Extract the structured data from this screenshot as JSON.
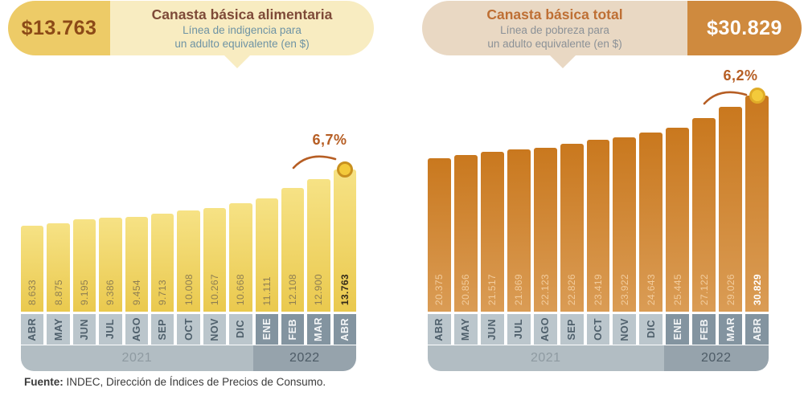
{
  "header_left": {
    "value": "$13.763",
    "title": "Canasta básica alimentaria",
    "subtitle_line1": "Línea de indigencia para",
    "subtitle_line2": "un adulto equivalente (en $)"
  },
  "header_right": {
    "value": "$30.829",
    "title": "Canasta básica total",
    "subtitle_line1": "Línea de pobreza para",
    "subtitle_line2": "un adulto equivalente (en $)"
  },
  "footer": {
    "source_label": "Fuente:",
    "source_text": " INDEC, Dirección de Índices de Precios de Consumo."
  },
  "chart_data": [
    {
      "type": "bar",
      "title": "Canasta básica alimentaria",
      "subtitle": "Línea de indigencia para un adulto equivalente (en $)",
      "categories": [
        "ABR",
        "MAY",
        "JUN",
        "JUL",
        "AGO",
        "SEP",
        "OCT",
        "NOV",
        "DIC",
        "ENE",
        "FEB",
        "MAR",
        "ABR"
      ],
      "values": [
        8633,
        8875,
        9195,
        9386,
        9454,
        9713,
        10008,
        10267,
        10668,
        11111,
        12108,
        12900,
        13763
      ],
      "value_labels": [
        "8.633",
        "8.875",
        "9.195",
        "9.386",
        "9.454",
        "9.713",
        "10.008",
        "10.267",
        "10.668",
        "11.111",
        "12.108",
        "12.900",
        "13.763"
      ],
      "years": [
        {
          "label": "2021",
          "months": 9
        },
        {
          "label": "2022",
          "months": 4
        }
      ],
      "annotation": {
        "label": "6,7%"
      },
      "latest_value": "$13.763"
    },
    {
      "type": "bar",
      "title": "Canasta básica total",
      "subtitle": "Línea de pobreza para un adulto equivalente (en $)",
      "categories": [
        "ABR",
        "MAY",
        "JUN",
        "JUL",
        "AGO",
        "SEP",
        "OCT",
        "NOV",
        "DIC",
        "ENE",
        "FEB",
        "MAR",
        "ABR"
      ],
      "values": [
        20375,
        20856,
        21517,
        21869,
        22123,
        22826,
        23419,
        23922,
        24643,
        25445,
        27122,
        29026,
        30829
      ],
      "value_labels": [
        "20.375",
        "20.856",
        "21.517",
        "21.869",
        "22.123",
        "22.826",
        "23.419",
        "23.922",
        "24.643",
        "25.445",
        "27.122",
        "29.026",
        "30.829"
      ],
      "years": [
        {
          "label": "2021",
          "months": 9
        },
        {
          "label": "2022",
          "months": 4
        }
      ],
      "annotation": {
        "label": "6,2%"
      },
      "latest_value": "$30.829"
    }
  ],
  "colors": {
    "left_bar_top": "#F6E285",
    "left_bar_bottom": "#EAC94E",
    "right_bar_top": "#C9781E",
    "right_bar_bottom": "#DA9C55",
    "accent_percent": "#B65E24",
    "marker_fill": "#F3CA3B",
    "marker_ring": "#C9911F",
    "strip_2021": "#BBC6CC",
    "strip_2022": "#8394A0",
    "band_2021": "#B2BDC3",
    "band_2022": "#96A3AC",
    "header_left_gold": "#EDCB67",
    "header_left_cream": "#F8ECC1",
    "header_right_beige": "#E9D8C3",
    "header_right_gold": "#CF8A3E"
  }
}
